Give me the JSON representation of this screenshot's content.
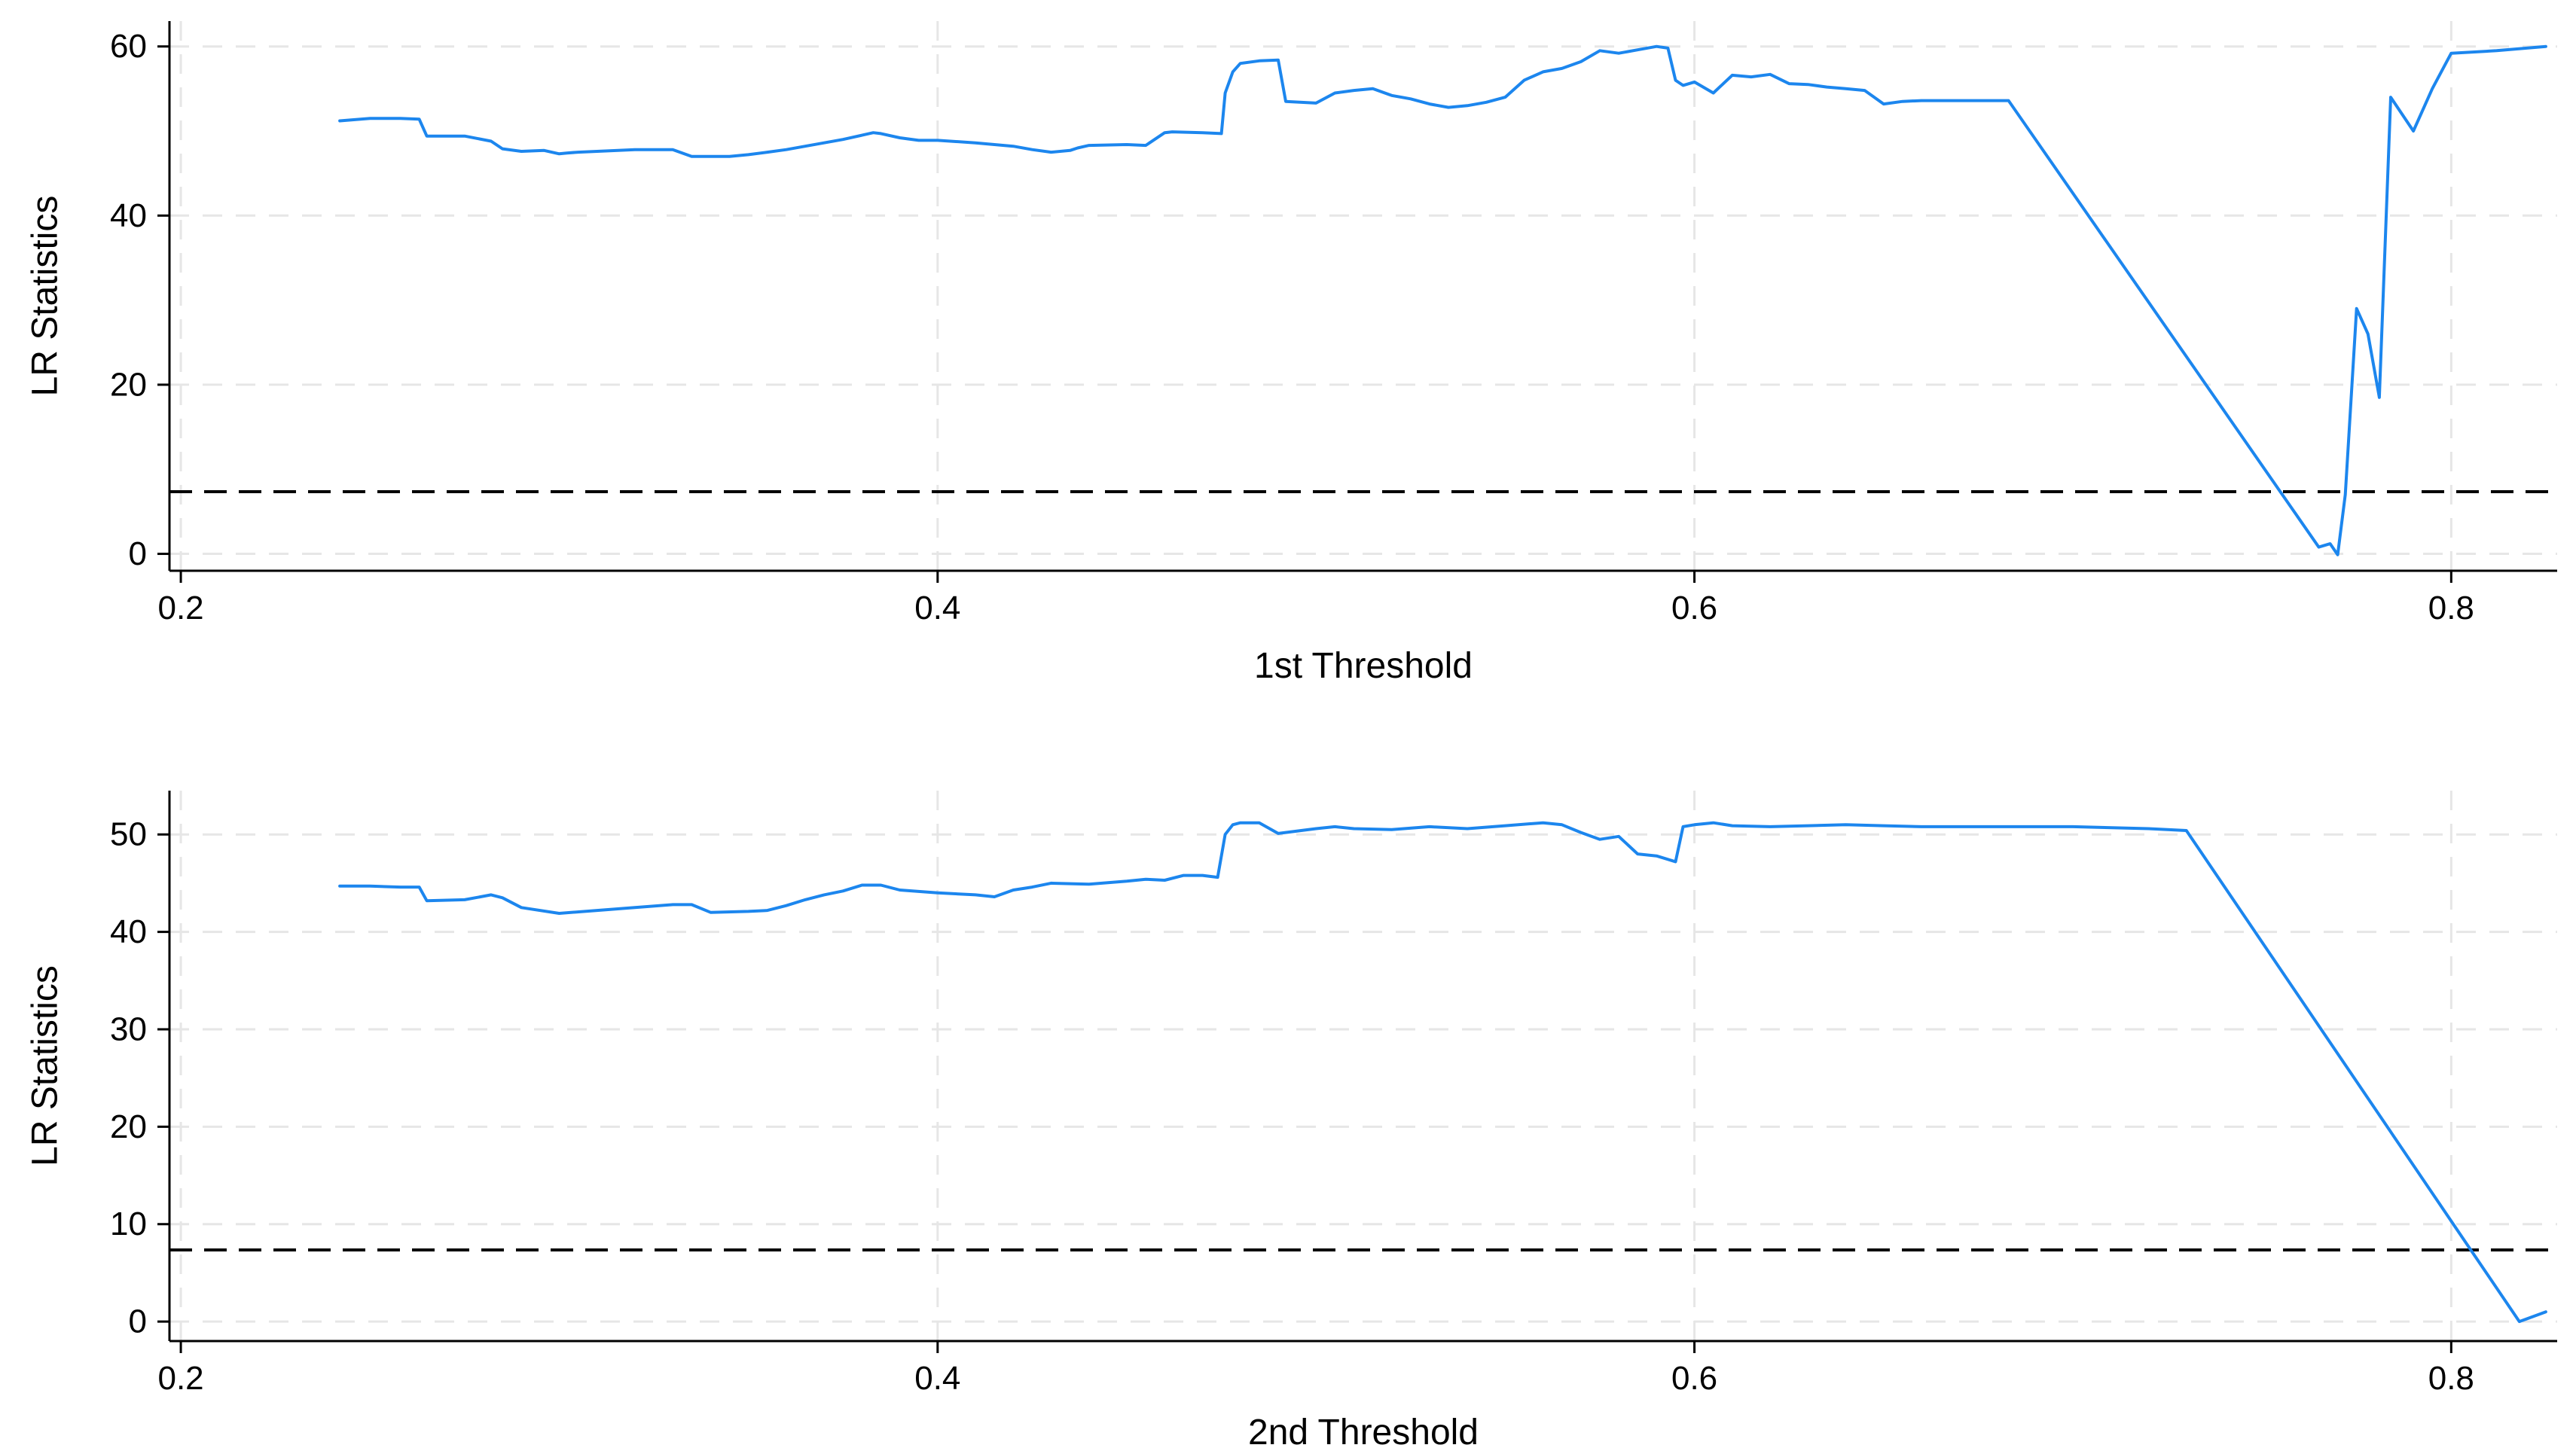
{
  "colors": {
    "series": "#1c86ee",
    "reference_line": "#000000",
    "grid": "#e6e6e6",
    "axis": "#000000"
  },
  "chart_data": [
    {
      "type": "line",
      "xlabel": "1st Threshold",
      "ylabel": "LR Statistics",
      "xlim": [
        0.197,
        0.828
      ],
      "ylim": [
        -2,
        63
      ],
      "xticks": [
        0.2,
        0.4,
        0.6,
        0.8
      ],
      "xtick_labels": [
        "0.2",
        "0.4",
        "0.6",
        "0.8"
      ],
      "yticks": [
        0,
        20,
        40,
        60
      ],
      "ytick_labels": [
        "0",
        "20",
        "40",
        "60"
      ],
      "grid": true,
      "reference_line": {
        "y": 7.35,
        "style": "dashed"
      },
      "series": [
        {
          "x": [
            0.242,
            0.25,
            0.258,
            0.263,
            0.265,
            0.275,
            0.282,
            0.285,
            0.29,
            0.296,
            0.3,
            0.302,
            0.305,
            0.31,
            0.32,
            0.33,
            0.335,
            0.34,
            0.345,
            0.35,
            0.355,
            0.36,
            0.365,
            0.37,
            0.375,
            0.38,
            0.383,
            0.385,
            0.39,
            0.395,
            0.4,
            0.41,
            0.42,
            0.425,
            0.43,
            0.435,
            0.437,
            0.44,
            0.45,
            0.455,
            0.46,
            0.462,
            0.47,
            0.475,
            0.476,
            0.478,
            0.48,
            0.485,
            0.49,
            0.492,
            0.5,
            0.505,
            0.51,
            0.515,
            0.52,
            0.525,
            0.53,
            0.535,
            0.54,
            0.545,
            0.55,
            0.555,
            0.56,
            0.565,
            0.57,
            0.575,
            0.58,
            0.585,
            0.59,
            0.593,
            0.595,
            0.597,
            0.6,
            0.605,
            0.61,
            0.615,
            0.62,
            0.625,
            0.63,
            0.635,
            0.64,
            0.645,
            0.65,
            0.655,
            0.66,
            0.67,
            0.683,
            0.765,
            0.768,
            0.77,
            0.772,
            0.775,
            0.778,
            0.781,
            0.784,
            0.787,
            0.79,
            0.795,
            0.8,
            0.812,
            0.825
          ],
          "y": [
            51.2,
            51.5,
            51.5,
            51.4,
            49.4,
            49.4,
            48.8,
            47.9,
            47.6,
            47.7,
            47.3,
            47.4,
            47.5,
            47.6,
            47.8,
            47.8,
            47.0,
            47.0,
            47.0,
            47.2,
            47.5,
            47.8,
            48.2,
            48.6,
            49.0,
            49.5,
            49.8,
            49.7,
            49.2,
            48.9,
            48.9,
            48.6,
            48.2,
            47.8,
            47.5,
            47.7,
            48.0,
            48.3,
            48.4,
            48.3,
            49.8,
            49.9,
            49.8,
            49.7,
            54.5,
            57.0,
            58.0,
            58.3,
            58.4,
            53.5,
            53.3,
            54.5,
            54.8,
            55.0,
            54.2,
            53.8,
            53.2,
            52.8,
            53.0,
            53.4,
            54.0,
            56.0,
            57.0,
            57.4,
            58.2,
            59.5,
            59.2,
            59.6,
            60.0,
            59.8,
            56.0,
            55.4,
            55.8,
            54.5,
            56.6,
            56.4,
            56.7,
            55.6,
            55.5,
            55.2,
            55.0,
            54.8,
            53.2,
            53.5,
            53.6,
            53.6,
            53.6,
            0.8,
            1.2,
            -0.1,
            7.0,
            29.0,
            26.0,
            18.5,
            54.0,
            52.0,
            50.0,
            55.0,
            59.2,
            59.5,
            60.0
          ]
        }
      ]
    },
    {
      "type": "line",
      "xlabel": "2nd Threshold",
      "ylabel": "LR Statistics",
      "xlim": [
        0.197,
        0.828
      ],
      "ylim": [
        -2,
        54.5
      ],
      "xticks": [
        0.2,
        0.4,
        0.6,
        0.8
      ],
      "xtick_labels": [
        "0.2",
        "0.4",
        "0.6",
        "0.8"
      ],
      "yticks": [
        0,
        10,
        20,
        30,
        40,
        50
      ],
      "ytick_labels": [
        "0",
        "10",
        "20",
        "30",
        "40",
        "50"
      ],
      "grid": true,
      "reference_line": {
        "y": 7.35,
        "style": "dashed"
      },
      "series": [
        {
          "x": [
            0.242,
            0.25,
            0.258,
            0.263,
            0.265,
            0.275,
            0.282,
            0.285,
            0.29,
            0.3,
            0.31,
            0.32,
            0.33,
            0.335,
            0.34,
            0.35,
            0.355,
            0.36,
            0.365,
            0.37,
            0.375,
            0.38,
            0.385,
            0.39,
            0.4,
            0.41,
            0.415,
            0.42,
            0.425,
            0.43,
            0.44,
            0.45,
            0.455,
            0.46,
            0.465,
            0.47,
            0.474,
            0.476,
            0.478,
            0.48,
            0.485,
            0.49,
            0.5,
            0.505,
            0.51,
            0.52,
            0.53,
            0.54,
            0.55,
            0.56,
            0.565,
            0.57,
            0.575,
            0.58,
            0.585,
            0.59,
            0.595,
            0.597,
            0.6,
            0.605,
            0.61,
            0.62,
            0.63,
            0.64,
            0.65,
            0.66,
            0.68,
            0.7,
            0.72,
            0.73,
            0.818,
            0.825
          ],
          "y": [
            44.7,
            44.7,
            44.6,
            44.6,
            43.2,
            43.3,
            43.8,
            43.5,
            42.5,
            41.9,
            42.2,
            42.5,
            42.8,
            42.8,
            42.0,
            42.1,
            42.2,
            42.7,
            43.3,
            43.8,
            44.2,
            44.8,
            44.8,
            44.3,
            44.0,
            43.8,
            43.6,
            44.3,
            44.6,
            45.0,
            44.9,
            45.2,
            45.4,
            45.3,
            45.8,
            45.8,
            45.6,
            50.0,
            51.0,
            51.2,
            51.2,
            50.1,
            50.6,
            50.8,
            50.6,
            50.5,
            50.8,
            50.6,
            50.9,
            51.2,
            51.0,
            50.2,
            49.5,
            49.8,
            48.0,
            47.8,
            47.2,
            50.8,
            51.0,
            51.2,
            50.9,
            50.8,
            50.9,
            51.0,
            50.9,
            50.8,
            50.8,
            50.8,
            50.6,
            50.4,
            0.0,
            1.0
          ]
        }
      ]
    }
  ]
}
